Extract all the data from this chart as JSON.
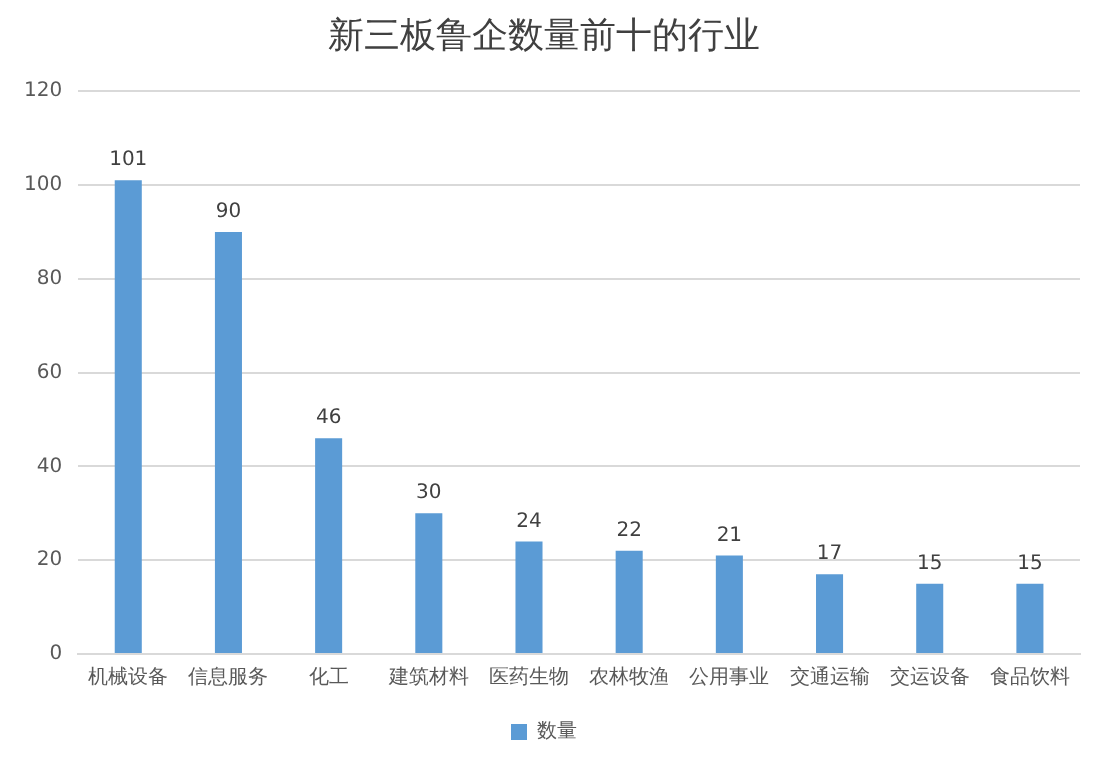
{
  "chart_data": {
    "type": "bar",
    "title": "新三板鲁企数量前十的行业",
    "categories": [
      "机械设备",
      "信息服务",
      "化工",
      "建筑材料",
      "医药生物",
      "农林牧渔",
      "公用事业",
      "交通运输",
      "交运设备",
      "食品饮料"
    ],
    "series": [
      {
        "name": "数量",
        "color": "#5b9bd5",
        "values": [
          101,
          90,
          46,
          30,
          24,
          22,
          21,
          17,
          15,
          15
        ]
      }
    ],
    "ylim": [
      0,
      120
    ],
    "yticks": [
      0,
      20,
      40,
      60,
      80,
      100,
      120
    ],
    "grid": "y",
    "legend": "bottom",
    "data_labels": true
  }
}
